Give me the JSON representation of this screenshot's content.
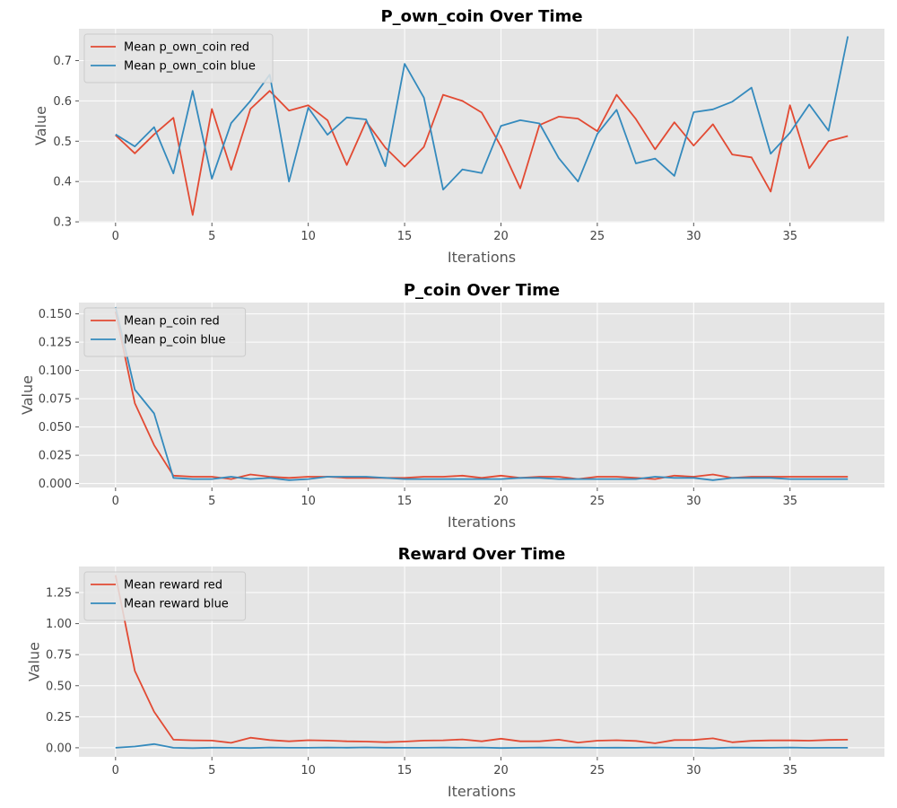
{
  "colors": {
    "red": "#E24A33",
    "blue": "#348ABD",
    "panel_bg": "#E5E5E5",
    "grid": "#FFFFFF"
  },
  "chart_data": [
    {
      "type": "line",
      "title": "P_own_coin Over Time",
      "xlabel": "Iterations",
      "ylabel": "Value",
      "xlim": [
        -1.9,
        39.9
      ],
      "ylim": [
        0.298,
        0.779
      ],
      "xticks": [
        0,
        5,
        10,
        15,
        20,
        25,
        30,
        35
      ],
      "xtick_labels": [
        "0",
        "5",
        "10",
        "15",
        "20",
        "25",
        "30",
        "35"
      ],
      "yticks": [
        0.3,
        0.4,
        0.5,
        0.6,
        0.7
      ],
      "ytick_labels": [
        "0.3",
        "0.4",
        "0.5",
        "0.6",
        "0.7"
      ],
      "grid": true,
      "legend_position": "upper-left",
      "x": [
        0,
        1,
        2,
        3,
        4,
        5,
        6,
        7,
        8,
        9,
        10,
        11,
        12,
        13,
        14,
        15,
        16,
        17,
        18,
        19,
        20,
        21,
        22,
        23,
        24,
        25,
        26,
        27,
        28,
        29,
        30,
        31,
        32,
        33,
        34,
        35,
        36,
        37,
        38
      ],
      "series": [
        {
          "name": "Mean p_own_coin red",
          "color_key": "red",
          "values": [
            0.515,
            0.47,
            0.517,
            0.558,
            0.317,
            0.58,
            0.429,
            0.58,
            0.625,
            0.576,
            0.589,
            0.552,
            0.441,
            0.549,
            0.484,
            0.437,
            0.486,
            0.615,
            0.6,
            0.571,
            0.487,
            0.383,
            0.54,
            0.561,
            0.556,
            0.525,
            0.615,
            0.555,
            0.48,
            0.547,
            0.489,
            0.542,
            0.467,
            0.46,
            0.375,
            0.589,
            0.433,
            0.5,
            0.513
          ]
        },
        {
          "name": "Mean p_own_coin blue",
          "color_key": "blue",
          "values": [
            0.517,
            0.487,
            0.535,
            0.42,
            0.625,
            0.407,
            0.545,
            0.6,
            0.665,
            0.4,
            0.583,
            0.516,
            0.559,
            0.554,
            0.438,
            0.692,
            0.608,
            0.38,
            0.43,
            0.421,
            0.538,
            0.552,
            0.544,
            0.458,
            0.4,
            0.518,
            0.578,
            0.445,
            0.457,
            0.414,
            0.572,
            0.579,
            0.598,
            0.633,
            0.469,
            0.521,
            0.591,
            0.526,
            0.76
          ]
        }
      ]
    },
    {
      "type": "line",
      "title": "P_coin Over Time",
      "xlabel": "Iterations",
      "ylabel": "Value",
      "xlim": [
        -1.9,
        39.9
      ],
      "ylim": [
        -0.0035,
        0.16
      ],
      "xticks": [
        0,
        5,
        10,
        15,
        20,
        25,
        30,
        35
      ],
      "xtick_labels": [
        "0",
        "5",
        "10",
        "15",
        "20",
        "25",
        "30",
        "35"
      ],
      "yticks": [
        0.0,
        0.025,
        0.05,
        0.075,
        0.1,
        0.125,
        0.15
      ],
      "ytick_labels": [
        "0.000",
        "0.025",
        "0.050",
        "0.075",
        "0.100",
        "0.125",
        "0.150"
      ],
      "grid": true,
      "legend_position": "upper-left",
      "x": [
        0,
        1,
        2,
        3,
        4,
        5,
        6,
        7,
        8,
        9,
        10,
        11,
        12,
        13,
        14,
        15,
        16,
        17,
        18,
        19,
        20,
        21,
        22,
        23,
        24,
        25,
        26,
        27,
        28,
        29,
        30,
        31,
        32,
        33,
        34,
        35,
        36,
        37,
        38
      ],
      "series": [
        {
          "name": "Mean p_coin red",
          "color_key": "red",
          "values": [
            0.152,
            0.071,
            0.034,
            0.007,
            0.006,
            0.006,
            0.004,
            0.008,
            0.006,
            0.005,
            0.006,
            0.006,
            0.005,
            0.005,
            0.005,
            0.005,
            0.006,
            0.006,
            0.007,
            0.005,
            0.007,
            0.005,
            0.006,
            0.006,
            0.004,
            0.006,
            0.006,
            0.005,
            0.004,
            0.007,
            0.006,
            0.008,
            0.005,
            0.006,
            0.006,
            0.006,
            0.006,
            0.006,
            0.006
          ]
        },
        {
          "name": "Mean p_coin blue",
          "color_key": "blue",
          "values": [
            0.156,
            0.083,
            0.062,
            0.005,
            0.004,
            0.004,
            0.006,
            0.004,
            0.005,
            0.003,
            0.004,
            0.006,
            0.006,
            0.006,
            0.005,
            0.004,
            0.004,
            0.004,
            0.004,
            0.004,
            0.004,
            0.005,
            0.005,
            0.004,
            0.004,
            0.004,
            0.004,
            0.004,
            0.006,
            0.005,
            0.005,
            0.003,
            0.005,
            0.005,
            0.005,
            0.004,
            0.004,
            0.004,
            0.004
          ]
        }
      ]
    },
    {
      "type": "line",
      "title": "Reward Over Time",
      "xlabel": "Iterations",
      "ylabel": "Value",
      "xlim": [
        -1.9,
        39.9
      ],
      "ylim": [
        -0.073,
        1.46
      ],
      "xticks": [
        0,
        5,
        10,
        15,
        20,
        25,
        30,
        35
      ],
      "xtick_labels": [
        "0",
        "5",
        "10",
        "15",
        "20",
        "25",
        "30",
        "35"
      ],
      "yticks": [
        0.0,
        0.25,
        0.5,
        0.75,
        1.0,
        1.25
      ],
      "ytick_labels": [
        "0.00",
        "0.25",
        "0.50",
        "0.75",
        "1.00",
        "1.25"
      ],
      "grid": true,
      "legend_position": "upper-left",
      "x": [
        0,
        1,
        2,
        3,
        4,
        5,
        6,
        7,
        8,
        9,
        10,
        11,
        12,
        13,
        14,
        15,
        16,
        17,
        18,
        19,
        20,
        21,
        22,
        23,
        24,
        25,
        26,
        27,
        28,
        29,
        30,
        31,
        32,
        33,
        34,
        35,
        36,
        37,
        38
      ],
      "series": [
        {
          "name": "Mean reward red",
          "color_key": "red",
          "values": [
            1.39,
            0.62,
            0.29,
            0.065,
            0.06,
            0.058,
            0.04,
            0.081,
            0.062,
            0.052,
            0.061,
            0.058,
            0.052,
            0.05,
            0.045,
            0.05,
            0.058,
            0.06,
            0.067,
            0.052,
            0.073,
            0.052,
            0.052,
            0.065,
            0.042,
            0.057,
            0.061,
            0.055,
            0.036,
            0.062,
            0.063,
            0.076,
            0.044,
            0.056,
            0.059,
            0.059,
            0.057,
            0.063,
            0.065
          ]
        },
        {
          "name": "Mean reward blue",
          "color_key": "blue",
          "values": [
            0.0,
            0.01,
            0.03,
            0.0,
            -0.003,
            0.001,
            0.0,
            -0.002,
            0.002,
            0.0,
            0.0,
            0.002,
            0.001,
            0.003,
            0.001,
            0.0,
            0.0,
            0.002,
            0.0,
            0.002,
            -0.002,
            0.0,
            0.002,
            0.0,
            0.002,
            0.0,
            0.001,
            0.0,
            0.003,
            0.0,
            0.0,
            -0.003,
            0.002,
            0.001,
            0.0,
            0.002,
            -0.001,
            0.0,
            0.0
          ]
        }
      ]
    }
  ]
}
